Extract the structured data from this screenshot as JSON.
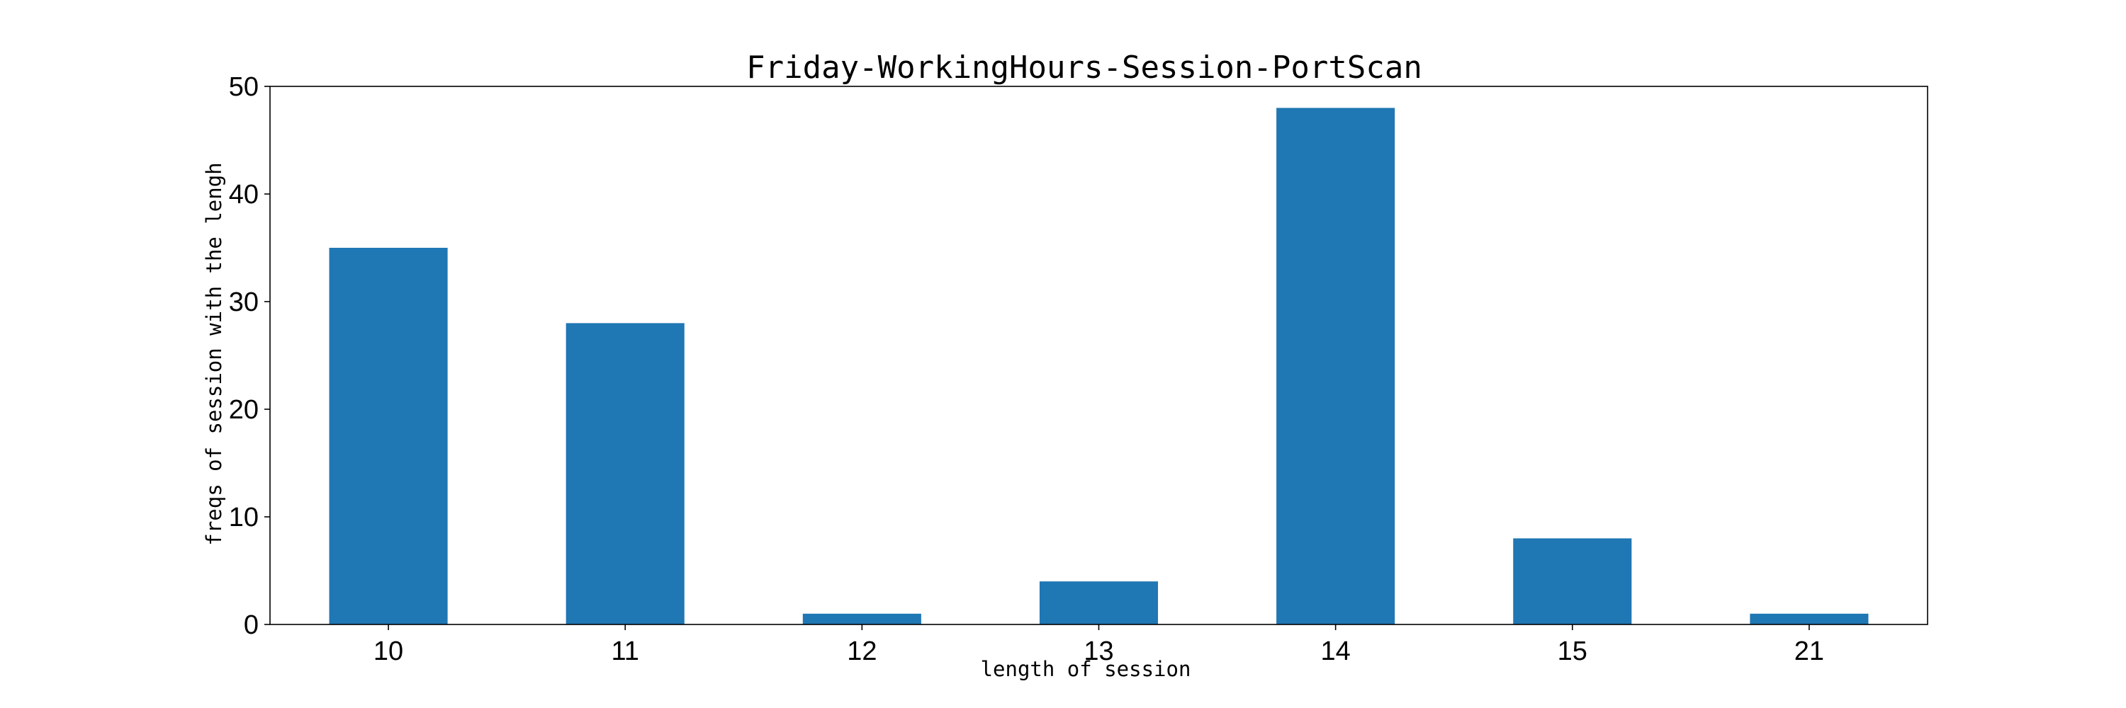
{
  "chart_data": {
    "type": "bar",
    "title": "Friday-WorkingHours-Session-PortScan",
    "xlabel": "length of session",
    "ylabel": "freqs of session with the lengh",
    "categories": [
      "10",
      "11",
      "12",
      "13",
      "14",
      "15",
      "21"
    ],
    "values": [
      35,
      28,
      1,
      4,
      48,
      8,
      1
    ],
    "ylim": [
      0,
      50
    ],
    "yticks": [
      0,
      10,
      20,
      30,
      40,
      50
    ],
    "grid": false,
    "legend": "none",
    "bar_color": "#1f77b4"
  }
}
